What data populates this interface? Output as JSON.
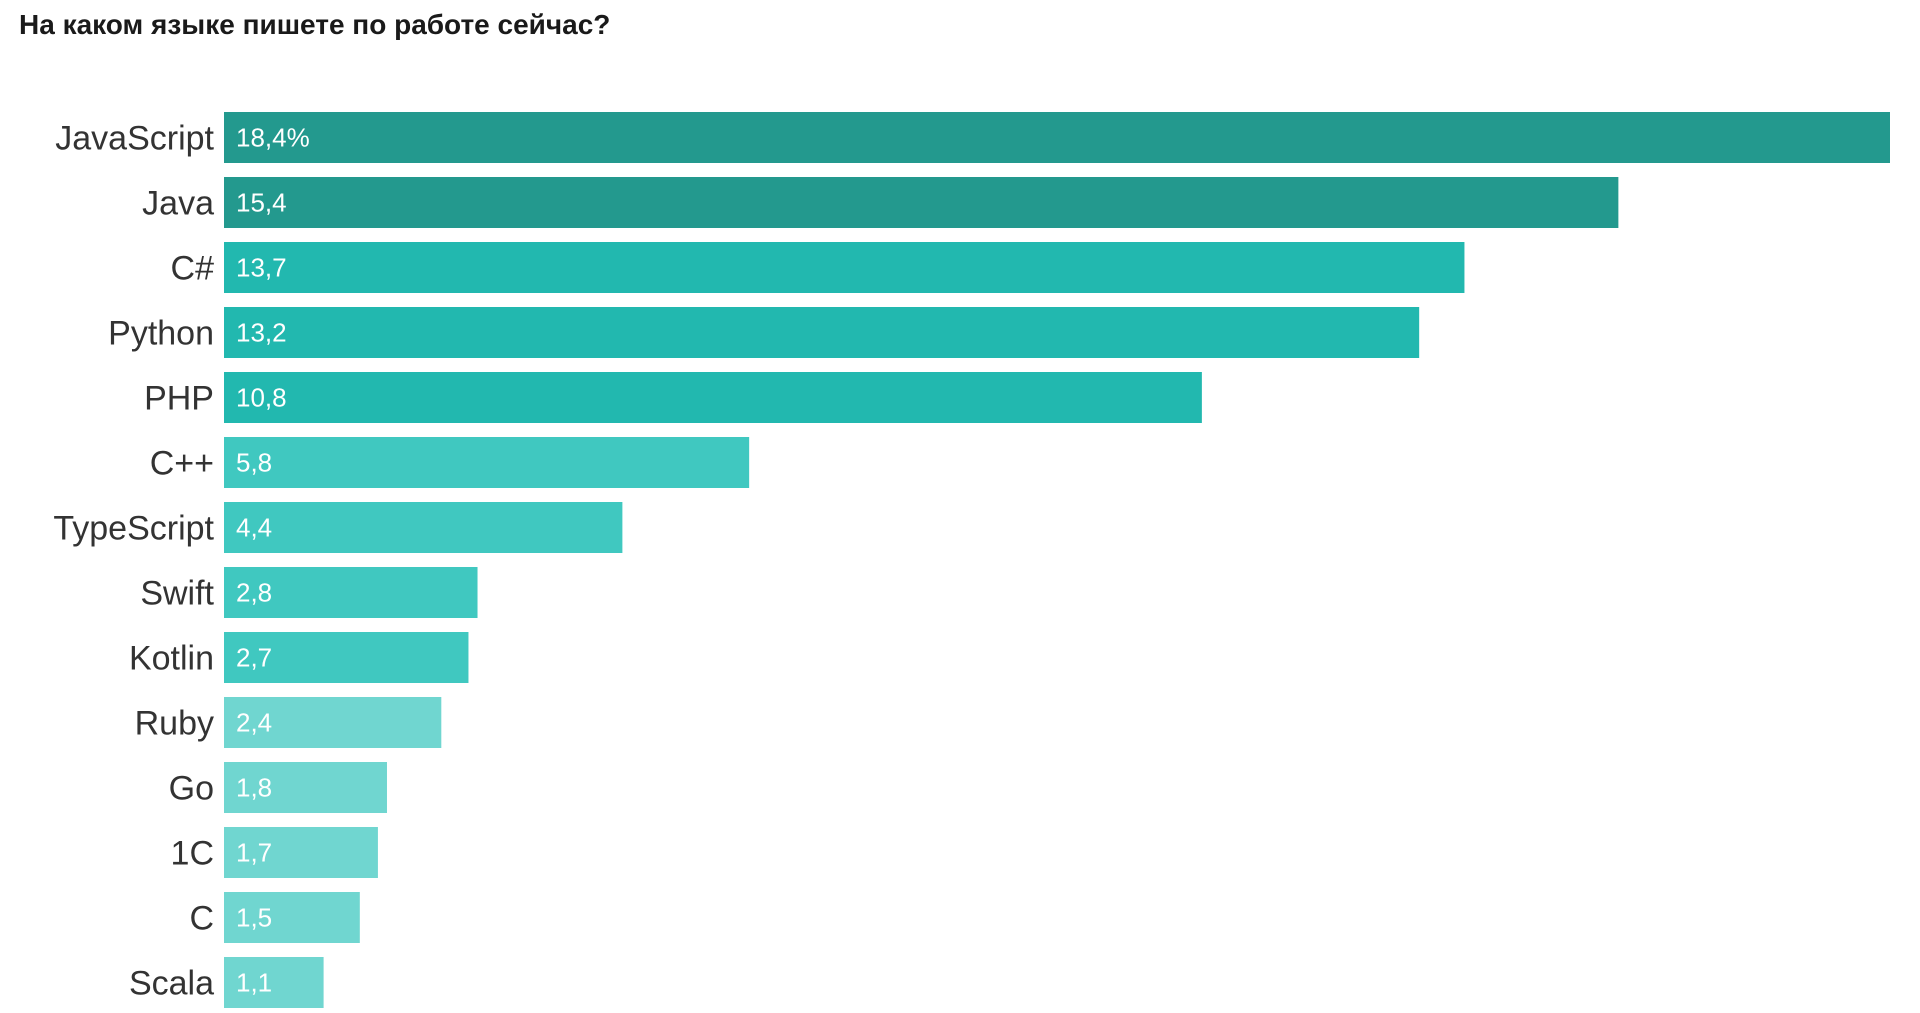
{
  "title": "На каком языке пишете по работе сейчас?",
  "chart_data": {
    "type": "bar",
    "orientation": "horizontal",
    "title": "На каком языке пишете по работе сейчас?",
    "categories": [
      "JavaScript",
      "Java",
      "C#",
      "Python",
      "PHP",
      "C++",
      "TypeScript",
      "Swift",
      "Kotlin",
      "Ruby",
      "Go",
      "1C",
      "C",
      "Scala"
    ],
    "values": [
      18.4,
      15.4,
      13.7,
      13.2,
      10.8,
      5.8,
      4.4,
      2.8,
      2.7,
      2.4,
      1.8,
      1.7,
      1.5,
      1.1
    ],
    "labels": [
      "18,4%",
      "15,4",
      "13,7",
      "13,2",
      "10,8",
      "5,8",
      "4,4",
      "2,8",
      "2,7",
      "2,4",
      "1,8",
      "1,7",
      "1,5",
      "1,1"
    ],
    "colors": [
      "#23998e",
      "#23998e",
      "#22b8af",
      "#22b8af",
      "#22b8af",
      "#40c8c0",
      "#40c8c0",
      "#40c8c0",
      "#40c8c0",
      "#70d6d0",
      "#70d6d0",
      "#70d6d0",
      "#70d6d0",
      "#70d6d0"
    ],
    "xlabel": "",
    "ylabel": "",
    "xlim": [
      0,
      18.4
    ],
    "grid": false,
    "legend": "none"
  }
}
